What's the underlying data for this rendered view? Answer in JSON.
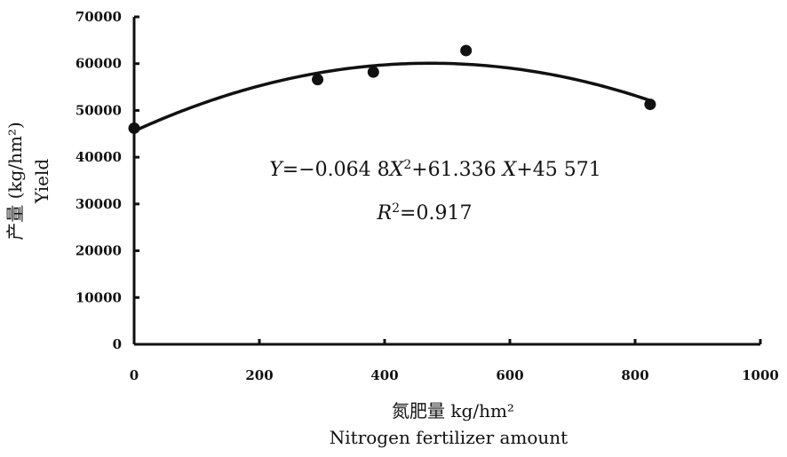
{
  "chart_data": {
    "type": "scatter",
    "x_axis": {
      "min": 0,
      "max": 1000,
      "ticks": [
        0,
        200,
        400,
        600,
        800,
        1000
      ],
      "tick_labels": [
        "0",
        "200",
        "400",
        "600",
        "800",
        "1000"
      ],
      "label_cn": "氮肥量 kg/hm²",
      "label_en": "Nitrogen fertilizer amount"
    },
    "y_axis": {
      "min": 0,
      "max": 70000,
      "ticks": [
        0,
        10000,
        20000,
        30000,
        40000,
        50000,
        60000,
        70000
      ],
      "tick_labels": [
        "0",
        "10000",
        "20000",
        "30000",
        "40000",
        "50000",
        "60000",
        "70000"
      ],
      "label_cn": "产量 (kg/hm²)",
      "label_en": "Yield"
    },
    "points": [
      {
        "x": 0,
        "y": 46200
      },
      {
        "x": 293,
        "y": 56600
      },
      {
        "x": 382,
        "y": 58200
      },
      {
        "x": 530,
        "y": 62800
      },
      {
        "x": 824,
        "y": 51300
      }
    ],
    "fit": {
      "type": "quadratic",
      "a": -0.0648,
      "b": 61.336,
      "c": 45571,
      "x_range": [
        0,
        824
      ],
      "equation_text": "Y=−0.064 8X²+61.336 X+45 571",
      "r2_text": "R²=0.917"
    },
    "grid": false,
    "legend": "none"
  }
}
